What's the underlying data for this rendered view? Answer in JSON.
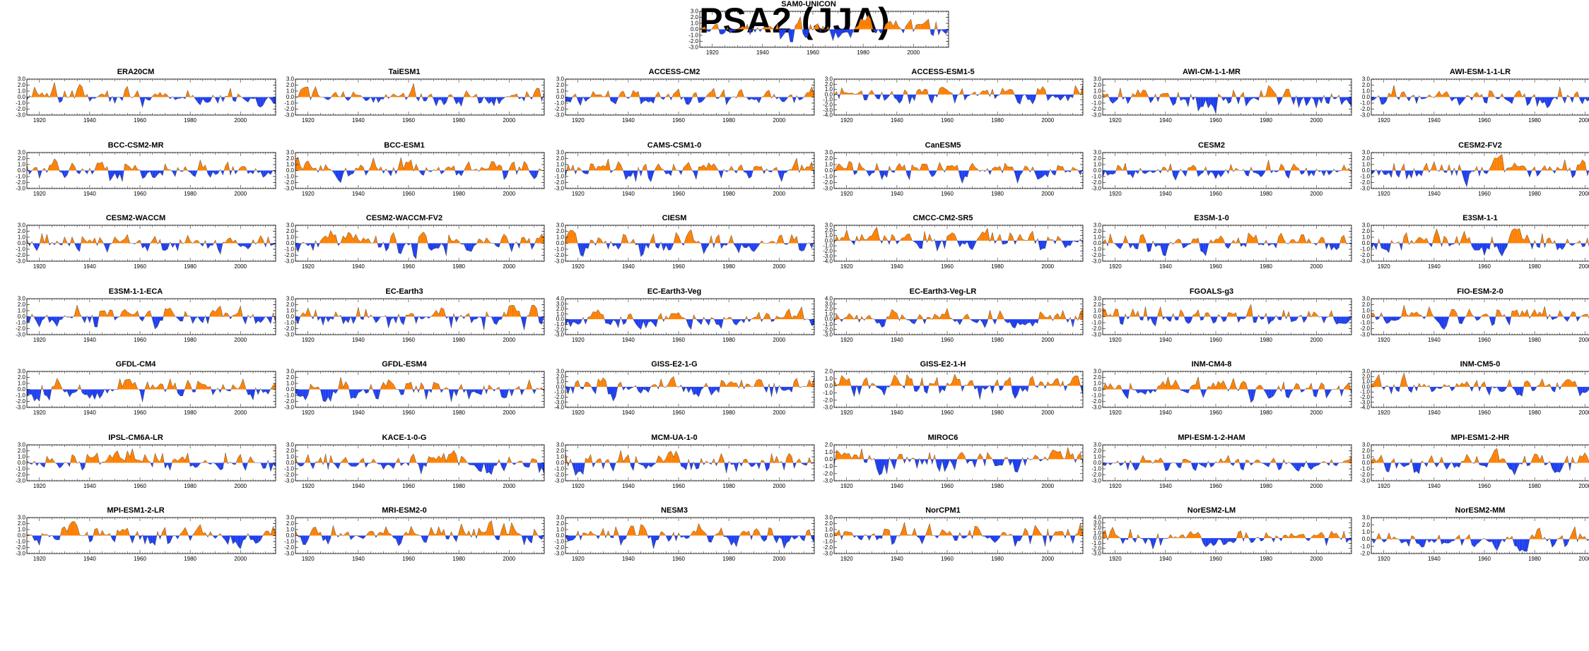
{
  "title": "PSA2 (JJA)",
  "colors": {
    "positive": "#ff8000",
    "negative": "#1e3ff0",
    "axis": "#000000"
  },
  "chart_data": {
    "type": "area",
    "x_range": [
      1915,
      2014
    ],
    "x_ticks": [
      1920,
      1940,
      1960,
      1980,
      2000
    ],
    "x_tick_labels": [
      "1920",
      "1940",
      "1960",
      "1980",
      "2000"
    ],
    "panels": [
      {
        "title": "ERA20CM",
        "ylim": [
          -3,
          3
        ],
        "y_ticks": [
          "3.0",
          "2.0",
          "1.0",
          "0.0",
          "-1.0",
          "-2.0",
          "-3.0"
        ],
        "amp": 1.3,
        "seed": 11
      },
      {
        "title": "TaiESM1",
        "ylim": [
          -3,
          3
        ],
        "y_ticks": [
          "3.0",
          "2.0",
          "1.0",
          "0.0",
          "-1.0",
          "-2.0",
          "-3.0"
        ],
        "amp": 1.3,
        "seed": 12
      },
      {
        "title": "ACCESS-CM2",
        "ylim": [
          -3,
          3
        ],
        "y_ticks": [
          "3.0",
          "2.0",
          "1.0",
          "0.0",
          "-1.0",
          "-2.0",
          "-3.0"
        ],
        "amp": 1.2,
        "seed": 13
      },
      {
        "title": "ACCESS-ESM1-5",
        "ylim": [
          -4,
          3
        ],
        "y_ticks": [
          "3.0",
          "2.0",
          "1.0",
          "0.0",
          "-1.0",
          "-2.0",
          "-3.0",
          "-4.0"
        ],
        "amp": 1.4,
        "seed": 14
      },
      {
        "title": "AWI-CM-1-1-MR",
        "ylim": [
          -3,
          3
        ],
        "y_ticks": [
          "3.0",
          "2.0",
          "1.0",
          "0.0",
          "-1.0",
          "-2.0",
          "-3.0"
        ],
        "amp": 1.6,
        "seed": 15
      },
      {
        "title": "AWI-ESM-1-1-LR",
        "ylim": [
          -3,
          3
        ],
        "y_ticks": [
          "3.0",
          "2.0",
          "1.0",
          "0.0",
          "-1.0",
          "-2.0",
          "-3.0"
        ],
        "amp": 1.3,
        "seed": 16
      },
      {
        "title": "BCC-CSM2-MR",
        "ylim": [
          -3,
          3
        ],
        "y_ticks": [
          "3.0",
          "2.0",
          "1.0",
          "0.0",
          "-1.0",
          "-2.0",
          "-3.0"
        ],
        "amp": 1.3,
        "seed": 21
      },
      {
        "title": "BCC-ESM1",
        "ylim": [
          -3,
          3
        ],
        "y_ticks": [
          "3.0",
          "2.0",
          "1.0",
          "0.0",
          "-1.0",
          "-2.0",
          "-3.0"
        ],
        "amp": 1.3,
        "seed": 22
      },
      {
        "title": "CAMS-CSM1-0",
        "ylim": [
          -3,
          3
        ],
        "y_ticks": [
          "3.0",
          "2.0",
          "1.0",
          "0.0",
          "-1.0",
          "-2.0",
          "-3.0"
        ],
        "amp": 1.4,
        "seed": 23
      },
      {
        "title": "CanESM5",
        "ylim": [
          -3,
          3
        ],
        "y_ticks": [
          "3.0",
          "2.0",
          "1.0",
          "0.0",
          "-1.0",
          "-2.0",
          "-3.0"
        ],
        "amp": 1.3,
        "seed": 24
      },
      {
        "title": "CESM2",
        "ylim": [
          -3,
          3
        ],
        "y_ticks": [
          "3.0",
          "2.0",
          "1.0",
          "0.0",
          "-1.0",
          "-2.0",
          "-3.0"
        ],
        "amp": 1.1,
        "seed": 25
      },
      {
        "title": "CESM2-FV2",
        "ylim": [
          -3,
          3
        ],
        "y_ticks": [
          "3.0",
          "2.0",
          "1.0",
          "0.0",
          "-1.0",
          "-2.0",
          "-3.0"
        ],
        "amp": 1.3,
        "seed": 26
      },
      {
        "title": "CESM2-WACCM",
        "ylim": [
          -3,
          3
        ],
        "y_ticks": [
          "3.0",
          "2.0",
          "1.0",
          "0.0",
          "-1.0",
          "-2.0",
          "-3.0"
        ],
        "amp": 1.3,
        "seed": 31
      },
      {
        "title": "CESM2-WACCM-FV2",
        "ylim": [
          -3,
          3
        ],
        "y_ticks": [
          "3.0",
          "2.0",
          "1.0",
          "0.0",
          "-1.0",
          "-2.0",
          "-3.0"
        ],
        "amp": 1.5,
        "seed": 32
      },
      {
        "title": "CIESM",
        "ylim": [
          -3,
          3
        ],
        "y_ticks": [
          "3.0",
          "2.0",
          "1.0",
          "0.0",
          "-1.0",
          "-2.0",
          "-3.0"
        ],
        "amp": 1.4,
        "seed": 33
      },
      {
        "title": "CMCC-CM2-SR5",
        "ylim": [
          -4,
          3
        ],
        "y_ticks": [
          "3.0",
          "2.0",
          "1.0",
          "0.0",
          "-1.0",
          "-2.0",
          "-3.0",
          "-4.0"
        ],
        "amp": 1.4,
        "seed": 34
      },
      {
        "title": "E3SM-1-0",
        "ylim": [
          -3,
          3
        ],
        "y_ticks": [
          "3.0",
          "2.0",
          "1.0",
          "0.0",
          "-1.0",
          "-2.0",
          "-3.0"
        ],
        "amp": 1.4,
        "seed": 35
      },
      {
        "title": "E3SM-1-1",
        "ylim": [
          -3,
          3
        ],
        "y_ticks": [
          "3.0",
          "2.0",
          "1.0",
          "0.0",
          "-1.0",
          "-2.0",
          "-3.0"
        ],
        "amp": 1.4,
        "seed": 36
      },
      {
        "title": "E3SM-1-1-ECA",
        "ylim": [
          -3,
          3
        ],
        "y_ticks": [
          "3.0",
          "2.0",
          "1.0",
          "0.0",
          "-1.0",
          "-2.0",
          "-3.0"
        ],
        "amp": 1.3,
        "seed": 41
      },
      {
        "title": "EC-Earth3",
        "ylim": [
          -3,
          3
        ],
        "y_ticks": [
          "3.0",
          "2.0",
          "1.0",
          "0.0",
          "-1.0",
          "-2.0",
          "-3.0"
        ],
        "amp": 1.4,
        "seed": 42
      },
      {
        "title": "EC-Earth3-Veg",
        "ylim": [
          -3,
          4
        ],
        "y_ticks": [
          "4.0",
          "3.0",
          "2.0",
          "1.0",
          "0.0",
          "-1.0",
          "-2.0",
          "-3.0"
        ],
        "amp": 1.3,
        "seed": 43
      },
      {
        "title": "EC-Earth3-Veg-LR",
        "ylim": [
          -3,
          4
        ],
        "y_ticks": [
          "4.0",
          "3.0",
          "2.0",
          "1.0",
          "0.0",
          "-1.0",
          "-2.0",
          "-3.0"
        ],
        "amp": 1.3,
        "seed": 44
      },
      {
        "title": "FGOALS-g3",
        "ylim": [
          -3,
          3
        ],
        "y_ticks": [
          "3.0",
          "2.0",
          "1.0",
          "0.0",
          "-1.0",
          "-2.0",
          "-3.0"
        ],
        "amp": 1.2,
        "seed": 45
      },
      {
        "title": "FIO-ESM-2-0",
        "ylim": [
          -3,
          3
        ],
        "y_ticks": [
          "3.0",
          "2.0",
          "1.0",
          "0.0",
          "-1.0",
          "-2.0",
          "-3.0"
        ],
        "amp": 1.4,
        "seed": 46
      },
      {
        "title": "GFDL-CM4",
        "ylim": [
          -3,
          3
        ],
        "y_ticks": [
          "3.0",
          "2.0",
          "1.0",
          "0.0",
          "-1.0",
          "-2.0",
          "-3.0"
        ],
        "amp": 1.4,
        "seed": 51
      },
      {
        "title": "GFDL-ESM4",
        "ylim": [
          -3,
          3
        ],
        "y_ticks": [
          "3.0",
          "2.0",
          "1.0",
          "0.0",
          "-1.0",
          "-2.0",
          "-3.0"
        ],
        "amp": 1.4,
        "seed": 52
      },
      {
        "title": "GISS-E2-1-G",
        "ylim": [
          -4,
          3
        ],
        "y_ticks": [
          "3.0",
          "2.0",
          "1.0",
          "0.0",
          "-1.0",
          "-2.0",
          "-3.0",
          "-4.0"
        ],
        "amp": 1.5,
        "seed": 53
      },
      {
        "title": "GISS-E2-1-H",
        "ylim": [
          -3,
          2
        ],
        "y_ticks": [
          "2.0",
          "1.0",
          "0.0",
          "-1.0",
          "-2.0",
          "-3.0"
        ],
        "amp": 1.3,
        "seed": 54
      },
      {
        "title": "INM-CM4-8",
        "ylim": [
          -3,
          3
        ],
        "y_ticks": [
          "3.0",
          "2.0",
          "1.0",
          "0.0",
          "-1.0",
          "-2.0",
          "-3.0"
        ],
        "amp": 1.5,
        "seed": 55
      },
      {
        "title": "INM-CM5-0",
        "ylim": [
          -4,
          3
        ],
        "y_ticks": [
          "3.0",
          "2.0",
          "1.0",
          "0.0",
          "-1.0",
          "-2.0",
          "-3.0",
          "-4.0"
        ],
        "amp": 1.4,
        "seed": 56
      },
      {
        "title": "IPSL-CM6A-LR",
        "ylim": [
          -3,
          3
        ],
        "y_ticks": [
          "3.0",
          "2.0",
          "1.0",
          "0.0",
          "-1.0",
          "-2.0",
          "-3.0"
        ],
        "amp": 1.4,
        "seed": 61
      },
      {
        "title": "KACE-1-0-G",
        "ylim": [
          -3,
          3
        ],
        "y_ticks": [
          "3.0",
          "2.0",
          "1.0",
          "0.0",
          "-1.0",
          "-2.0",
          "-3.0"
        ],
        "amp": 1.3,
        "seed": 62
      },
      {
        "title": "MCM-UA-1-0",
        "ylim": [
          -3,
          3
        ],
        "y_ticks": [
          "3.0",
          "2.0",
          "1.0",
          "0.0",
          "-1.0",
          "-2.0",
          "-3.0"
        ],
        "amp": 1.4,
        "seed": 63
      },
      {
        "title": "MIROC6",
        "ylim": [
          -3,
          2
        ],
        "y_ticks": [
          "2.0",
          "1.0",
          "0.0",
          "-1.0",
          "-2.0",
          "-3.0"
        ],
        "amp": 1.3,
        "seed": 64
      },
      {
        "title": "MPI-ESM-1-2-HAM",
        "ylim": [
          -3,
          3
        ],
        "y_ticks": [
          "3.0",
          "2.0",
          "1.0",
          "0.0",
          "-1.0",
          "-2.0",
          "-3.0"
        ],
        "amp": 1.2,
        "seed": 65
      },
      {
        "title": "MPI-ESM1-2-HR",
        "ylim": [
          -3,
          3
        ],
        "y_ticks": [
          "3.0",
          "2.0",
          "1.0",
          "0.0",
          "-1.0",
          "-2.0",
          "-3.0"
        ],
        "amp": 1.3,
        "seed": 66
      },
      {
        "title": "MPI-ESM1-2-LR",
        "ylim": [
          -3,
          3
        ],
        "y_ticks": [
          "3.0",
          "2.0",
          "1.0",
          "0.0",
          "-1.0",
          "-2.0",
          "-3.0"
        ],
        "amp": 1.4,
        "seed": 71
      },
      {
        "title": "MRI-ESM2-0",
        "ylim": [
          -3,
          3
        ],
        "y_ticks": [
          "3.0",
          "2.0",
          "1.0",
          "0.0",
          "-1.0",
          "-2.0",
          "-3.0"
        ],
        "amp": 1.3,
        "seed": 72
      },
      {
        "title": "NESM3",
        "ylim": [
          -3,
          3
        ],
        "y_ticks": [
          "3.0",
          "2.0",
          "1.0",
          "0.0",
          "-1.0",
          "-2.0",
          "-3.0"
        ],
        "amp": 1.3,
        "seed": 73
      },
      {
        "title": "NorCPM1",
        "ylim": [
          -3,
          3
        ],
        "y_ticks": [
          "3.0",
          "2.0",
          "1.0",
          "0.0",
          "-1.0",
          "-2.0",
          "-3.0"
        ],
        "amp": 1.3,
        "seed": 74
      },
      {
        "title": "NorESM2-LM",
        "ylim": [
          -3,
          4
        ],
        "y_ticks": [
          "4.0",
          "3.0",
          "2.0",
          "1.0",
          "0.0",
          "-1.0",
          "-2.0",
          "-3.0"
        ],
        "amp": 1.2,
        "seed": 75
      },
      {
        "title": "NorESM2-MM",
        "ylim": [
          -2,
          3
        ],
        "y_ticks": [
          "3.0",
          "2.0",
          "1.0",
          "0.0",
          "-1.0",
          "-2.0"
        ],
        "amp": 1.2,
        "seed": 76
      },
      {
        "title": "SAM0-UNICON",
        "ylim": [
          -3,
          3
        ],
        "y_ticks": [
          "3.0",
          "2.0",
          "1.0",
          "0.0",
          "-1.0",
          "-2.0",
          "-3.0"
        ],
        "amp": 1.4,
        "seed": 81
      }
    ]
  }
}
